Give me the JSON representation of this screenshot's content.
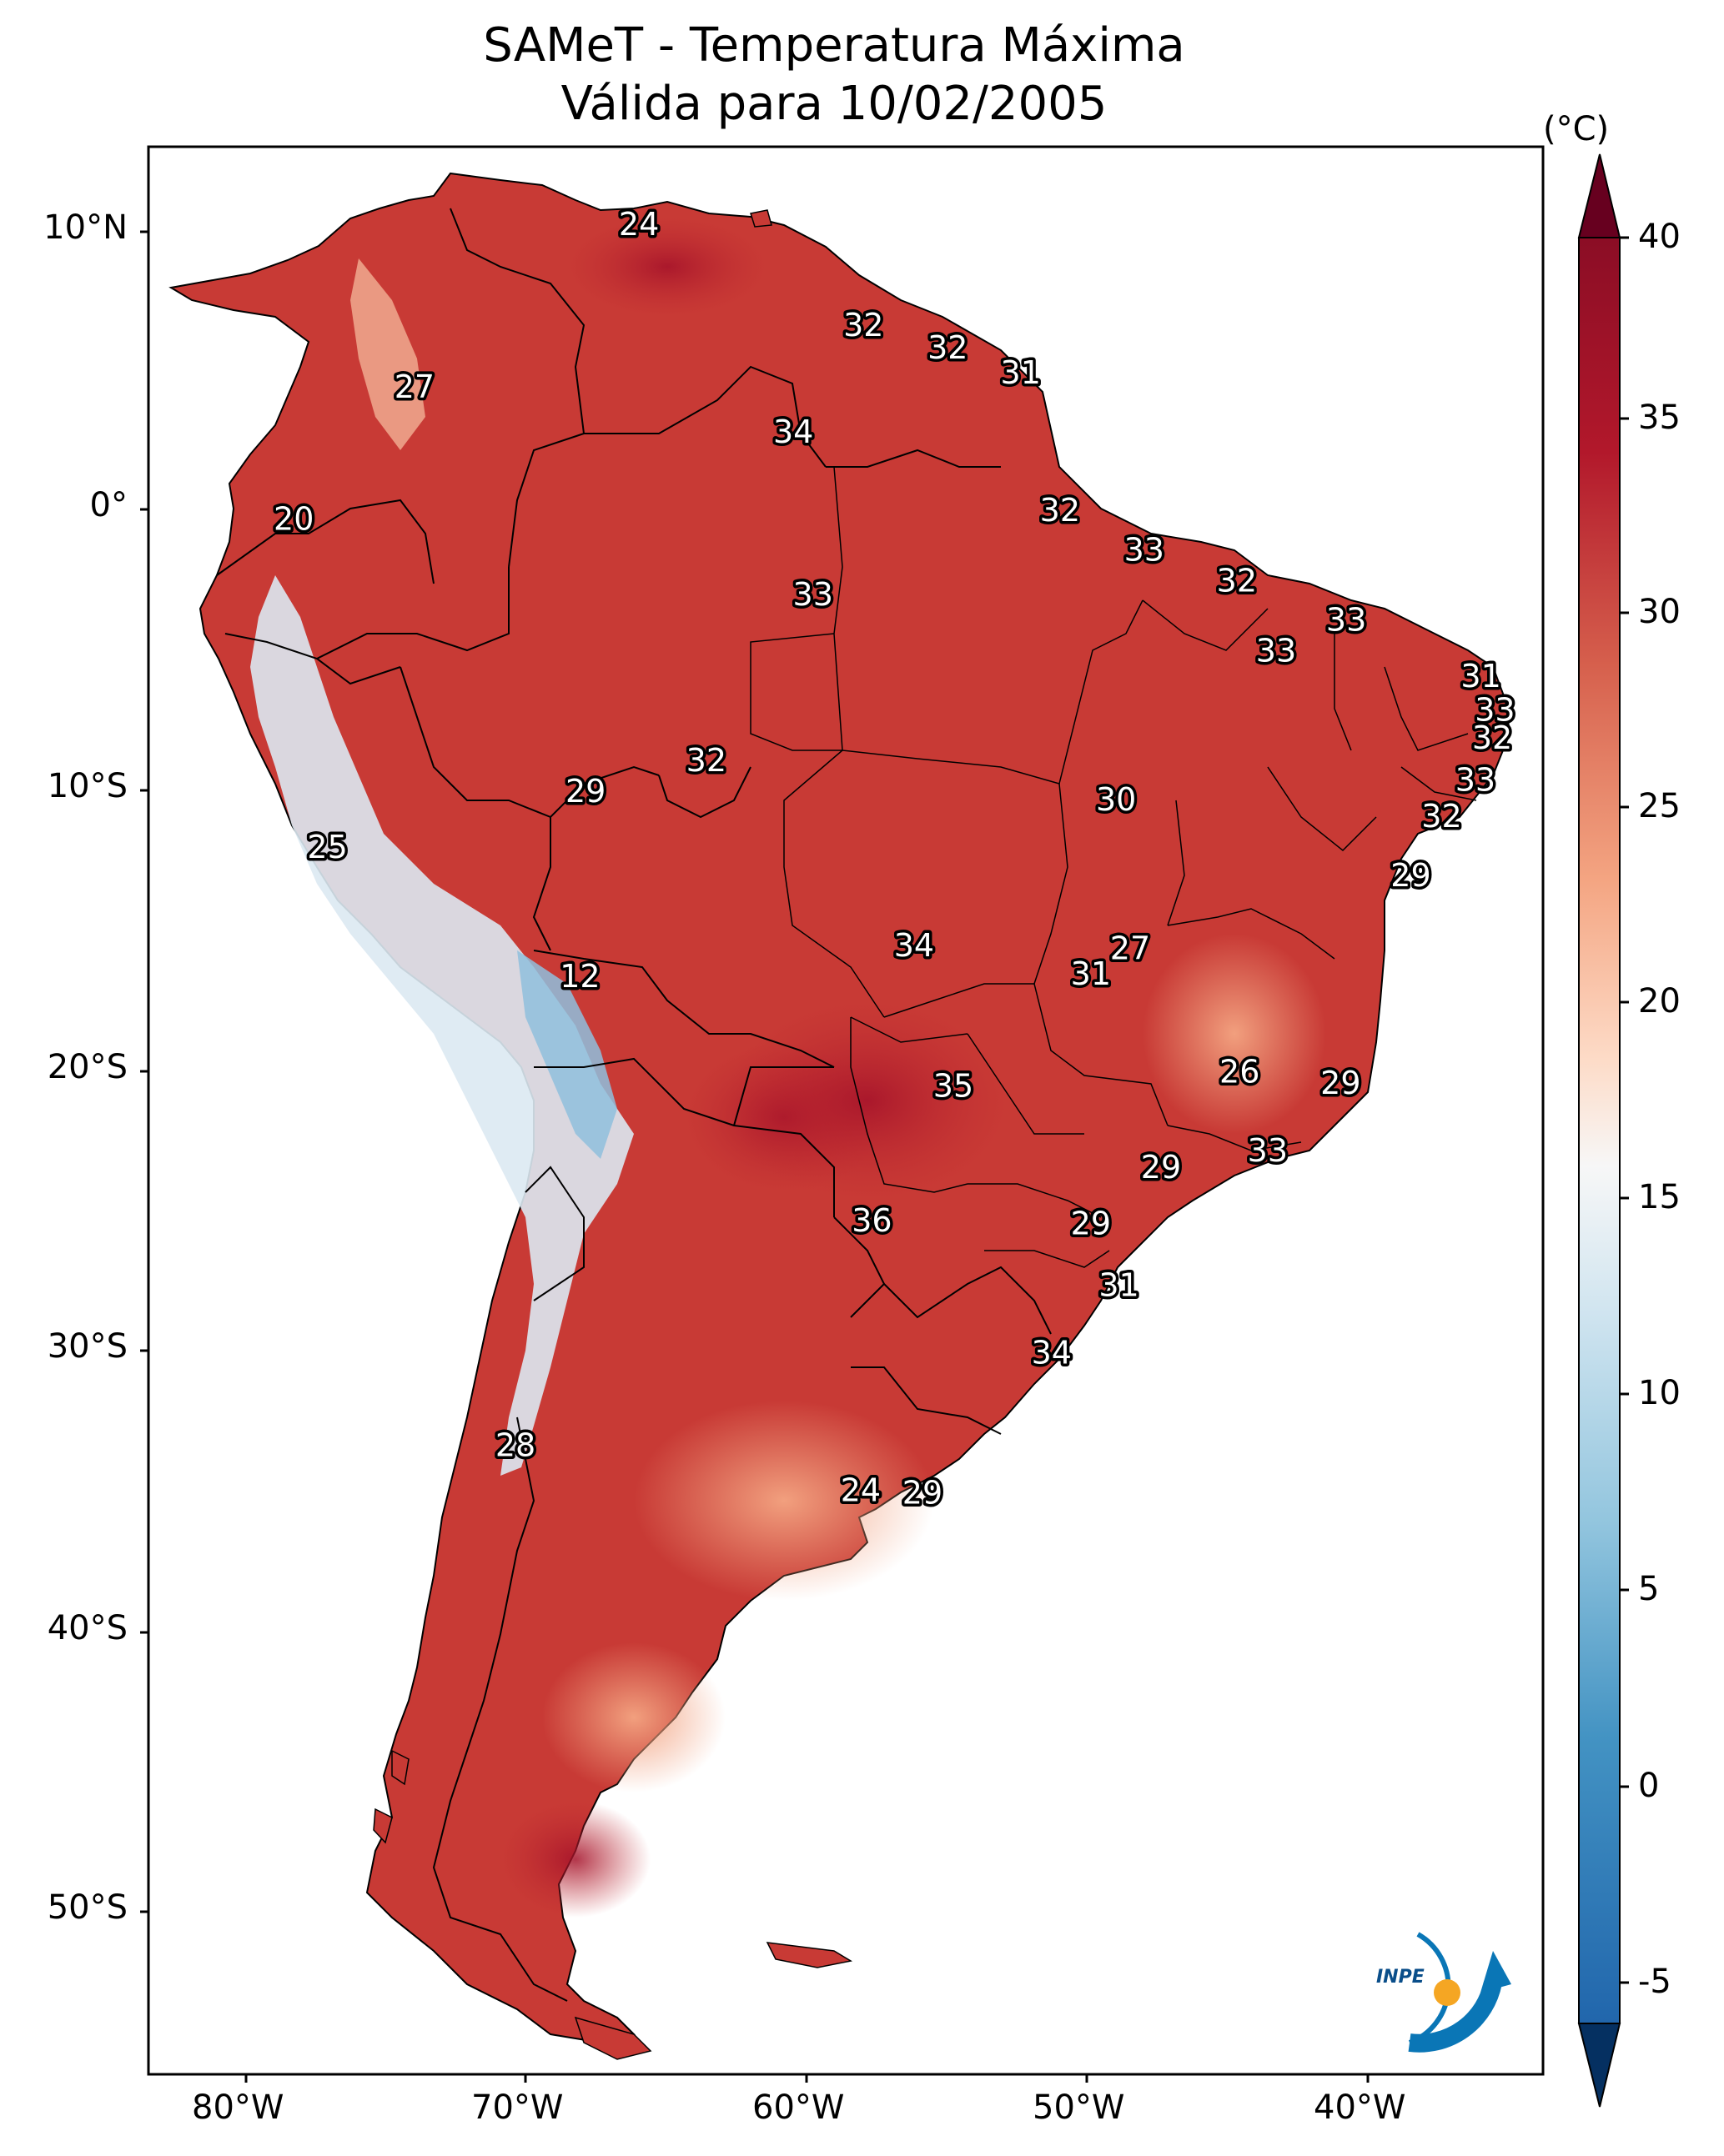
{
  "title": {
    "line1": "SAMeT - Temperatura Máxima",
    "line2": "Válida para 10/02/2005"
  },
  "axes": {
    "lat_labels": [
      "10°N",
      "0°",
      "10°S",
      "20°S",
      "30°S",
      "40°S",
      "50°S"
    ],
    "lon_labels": [
      "80°W",
      "70°W",
      "60°W",
      "50°W",
      "40°W"
    ]
  },
  "colorbar": {
    "unit": "(°C)",
    "ticks": [
      "40",
      "35",
      "30",
      "25",
      "20",
      "15",
      "10",
      "5",
      "0",
      "-5"
    ],
    "min": -7,
    "max": 42,
    "colors": {
      "extend_top": "#67001f",
      "top": "#8b0d25",
      "warm1": "#b2182b",
      "warm2": "#d6604d",
      "warm3": "#f4a582",
      "warm4": "#fddbc7",
      "neutral": "#f7f7f7",
      "cool1": "#d1e5f0",
      "cool2": "#92c5de",
      "cool3": "#4393c3",
      "cool4": "#2166ac",
      "extend_bottom": "#053061"
    }
  },
  "map_labels": [
    {
      "text": "24",
      "lon": -66.0,
      "lat": 10.2
    },
    {
      "text": "32",
      "lon": -58.0,
      "lat": 6.6
    },
    {
      "text": "32",
      "lon": -55.0,
      "lat": 5.8
    },
    {
      "text": "31",
      "lon": -52.4,
      "lat": 4.9
    },
    {
      "text": "27",
      "lon": -74.0,
      "lat": 4.4
    },
    {
      "text": "34",
      "lon": -60.5,
      "lat": 2.8
    },
    {
      "text": "20",
      "lon": -78.3,
      "lat": -0.3
    },
    {
      "text": "32",
      "lon": -51.0,
      "lat": 0.0
    },
    {
      "text": "33",
      "lon": -48.0,
      "lat": -1.4
    },
    {
      "text": "32",
      "lon": -44.7,
      "lat": -2.5
    },
    {
      "text": "33",
      "lon": -59.8,
      "lat": -3.0
    },
    {
      "text": "33",
      "lon": -40.8,
      "lat": -3.9
    },
    {
      "text": "33",
      "lon": -43.3,
      "lat": -5.0
    },
    {
      "text": "31",
      "lon": -36.0,
      "lat": -5.9
    },
    {
      "text": "33",
      "lon": -35.5,
      "lat": -7.1
    },
    {
      "text": "32",
      "lon": -35.6,
      "lat": -8.1
    },
    {
      "text": "32",
      "lon": -63.6,
      "lat": -8.9
    },
    {
      "text": "33",
      "lon": -36.2,
      "lat": -9.6
    },
    {
      "text": "29",
      "lon": -67.9,
      "lat": -10.0
    },
    {
      "text": "30",
      "lon": -49.0,
      "lat": -10.3
    },
    {
      "text": "32",
      "lon": -37.4,
      "lat": -10.9
    },
    {
      "text": "25",
      "lon": -77.1,
      "lat": -12.0
    },
    {
      "text": "29",
      "lon": -38.5,
      "lat": -13.0
    },
    {
      "text": "34",
      "lon": -56.2,
      "lat": -15.5
    },
    {
      "text": "27",
      "lon": -48.5,
      "lat": -15.6
    },
    {
      "text": "31",
      "lon": -49.9,
      "lat": -16.5
    },
    {
      "text": "12",
      "lon": -68.1,
      "lat": -16.6
    },
    {
      "text": "26",
      "lon": -44.6,
      "lat": -20.0
    },
    {
      "text": "29",
      "lon": -41.0,
      "lat": -20.4
    },
    {
      "text": "35",
      "lon": -54.8,
      "lat": -20.5
    },
    {
      "text": "33",
      "lon": -43.6,
      "lat": -22.8
    },
    {
      "text": "29",
      "lon": -47.4,
      "lat": -23.4
    },
    {
      "text": "36",
      "lon": -57.7,
      "lat": -25.3
    },
    {
      "text": "29",
      "lon": -49.9,
      "lat": -25.4
    },
    {
      "text": "31",
      "lon": -48.9,
      "lat": -27.6
    },
    {
      "text": "34",
      "lon": -51.3,
      "lat": -30.0
    },
    {
      "text": "28",
      "lon": -70.4,
      "lat": -33.3
    },
    {
      "text": "24",
      "lon": -58.1,
      "lat": -34.9
    },
    {
      "text": "29",
      "lon": -55.9,
      "lat": -35.0
    }
  ],
  "logo": {
    "text": "INPE"
  }
}
